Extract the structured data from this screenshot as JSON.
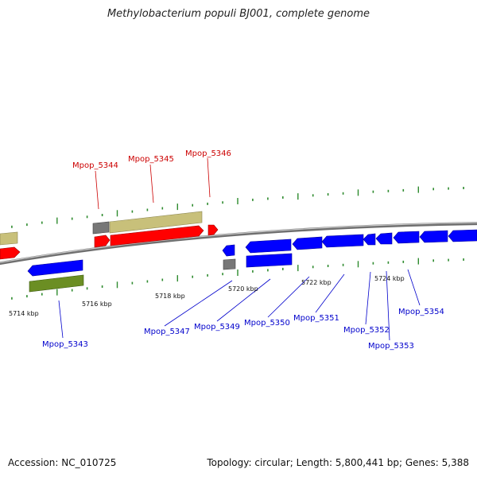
{
  "title": "Methylobacterium populi BJ001, complete genome",
  "accession": "Accession: NC_010725",
  "summary": "Topology: circular; Length: 5,800,441 bp; Genes: 5,388",
  "colors": {
    "forward_cds": "#ff0000",
    "reverse_cds": "#0000ff",
    "forward_gene": "#c8c07a",
    "reverse_gene": "#6b8e23",
    "other_feature": "#777777",
    "forward_label": "#cc0000",
    "reverse_label": "#0000cc",
    "backbone": "#888888",
    "tick": "#2e8b2e"
  },
  "axis_labels": [
    "5714 kbp",
    "5716 kbp",
    "5718 kbp",
    "5720 kbp",
    "5722 kbp",
    "5724 kbp"
  ],
  "genes_forward": [
    "Mpop_5344",
    "Mpop_5345",
    "Mpop_5346"
  ],
  "genes_reverse": [
    "Mpop_5343",
    "Mpop_5347",
    "Mpop_5349",
    "Mpop_5350",
    "Mpop_5351",
    "Mpop_5352",
    "Mpop_5353",
    "Mpop_5354"
  ]
}
